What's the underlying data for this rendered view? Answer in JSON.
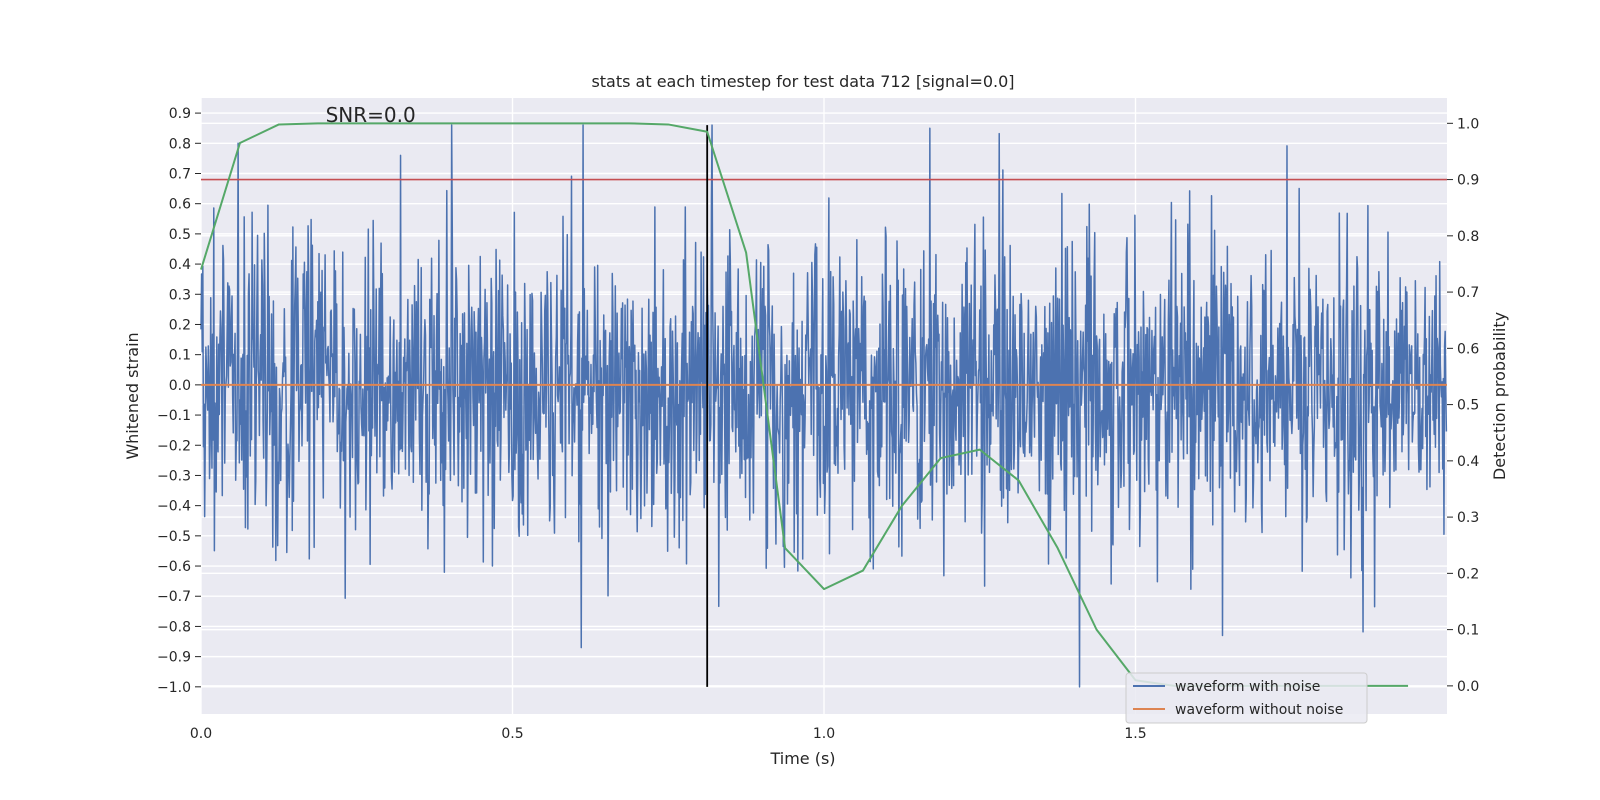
{
  "chart_data": {
    "type": "line",
    "title": "stats at each timestep for test data 712 [signal=0.0]",
    "xlabel": "Time (s)",
    "ylabel_left": "Whitened strain",
    "ylabel_right": "Detection probability",
    "xlim": [
      0.0,
      2.0
    ],
    "ylim_left": [
      -1.09,
      0.95
    ],
    "ylim_right": [
      -0.05,
      1.045
    ],
    "x_ticks": [
      0.0,
      0.5,
      1.0,
      1.5
    ],
    "x_tick_labels": [
      "0.0",
      "0.5",
      "1.0",
      "1.5"
    ],
    "y_left_ticks": [
      0.9,
      0.8,
      0.7,
      0.6,
      0.5,
      0.4,
      0.3,
      0.2,
      0.1,
      0.0,
      -0.1,
      -0.2,
      -0.3,
      -0.4,
      -0.5,
      -0.6,
      -0.7,
      -0.8,
      -0.9,
      -1.0
    ],
    "y_left_tick_labels": [
      "0.9",
      "0.8",
      "0.7",
      "0.6",
      "0.5",
      "0.4",
      "0.3",
      "0.2",
      "0.1",
      "0.0",
      "−0.1",
      "−0.2",
      "−0.3",
      "−0.4",
      "−0.5",
      "−0.6",
      "−0.7",
      "−0.8",
      "−0.9",
      "−1.0"
    ],
    "y_right_ticks": [
      1.0,
      0.9,
      0.8,
      0.7,
      0.6,
      0.5,
      0.4,
      0.3,
      0.2,
      0.1,
      0.0
    ],
    "y_right_tick_labels": [
      "1.0",
      "0.9",
      "0.8",
      "0.7",
      "0.6",
      "0.5",
      "0.4",
      "0.3",
      "0.2",
      "0.1",
      "0.0"
    ],
    "grid": true,
    "background": "#eaeaf2",
    "legend_placement": "lower-right",
    "annotation": {
      "text": "SNR=0.0",
      "x": 0.2,
      "y": 0.87
    },
    "series": [
      {
        "name": "waveform with noise",
        "axis": "left",
        "color": "#4c72b0",
        "sampling": {
          "start": 0.0,
          "end": 2.0,
          "count": 2048
        },
        "amplitude_std": 0.25,
        "y_min": -1.0,
        "y_max": 0.86,
        "notable_peaks": [
          {
            "x": 0.06,
            "y": 0.8
          },
          {
            "x": 0.32,
            "y": 0.76
          },
          {
            "x": 0.82,
            "y": 0.86
          },
          {
            "x": 1.17,
            "y": 0.85
          },
          {
            "x": 1.41,
            "y": 0.82
          },
          {
            "x": 0.61,
            "y": -0.87
          },
          {
            "x": 1.41,
            "y": -1.0
          },
          {
            "x": 1.64,
            "y": -0.83
          }
        ]
      },
      {
        "name": "waveform without noise",
        "axis": "left",
        "color": "#dd8452",
        "x": [
          0.0,
          2.0
        ],
        "y": [
          0.0,
          0.0
        ]
      },
      {
        "name": "",
        "axis": "right",
        "color": "#55a868",
        "x": [
          0.0,
          0.0625,
          0.125,
          0.1875,
          0.25,
          0.3125,
          0.375,
          0.4375,
          0.5,
          0.5625,
          0.625,
          0.6875,
          0.75,
          0.8125,
          0.875,
          0.9375,
          1.0,
          1.0625,
          1.125,
          1.1875,
          1.25,
          1.3125,
          1.375,
          1.4375,
          1.5,
          1.5625,
          1.625,
          1.6875,
          1.75,
          1.8125,
          1.875,
          1.9375
        ],
        "y": [
          0.74,
          0.965,
          0.998,
          1.0,
          1.0,
          1.0,
          1.0,
          1.0,
          1.0,
          1.0,
          1.0,
          1.0,
          0.998,
          0.985,
          0.77,
          0.245,
          0.172,
          0.205,
          0.32,
          0.405,
          0.42,
          0.365,
          0.245,
          0.1,
          0.01,
          0.0,
          0.0,
          0.0,
          0.0,
          0.0,
          0.0,
          0.0
        ]
      }
    ],
    "reference_lines": [
      {
        "orientation": "horizontal",
        "axis": "right",
        "value": 0.9,
        "color": "#c44e52"
      },
      {
        "orientation": "vertical",
        "axis": "left",
        "value": 0.8125,
        "from": -1.0,
        "to": 0.86,
        "color": "#000000"
      }
    ]
  }
}
